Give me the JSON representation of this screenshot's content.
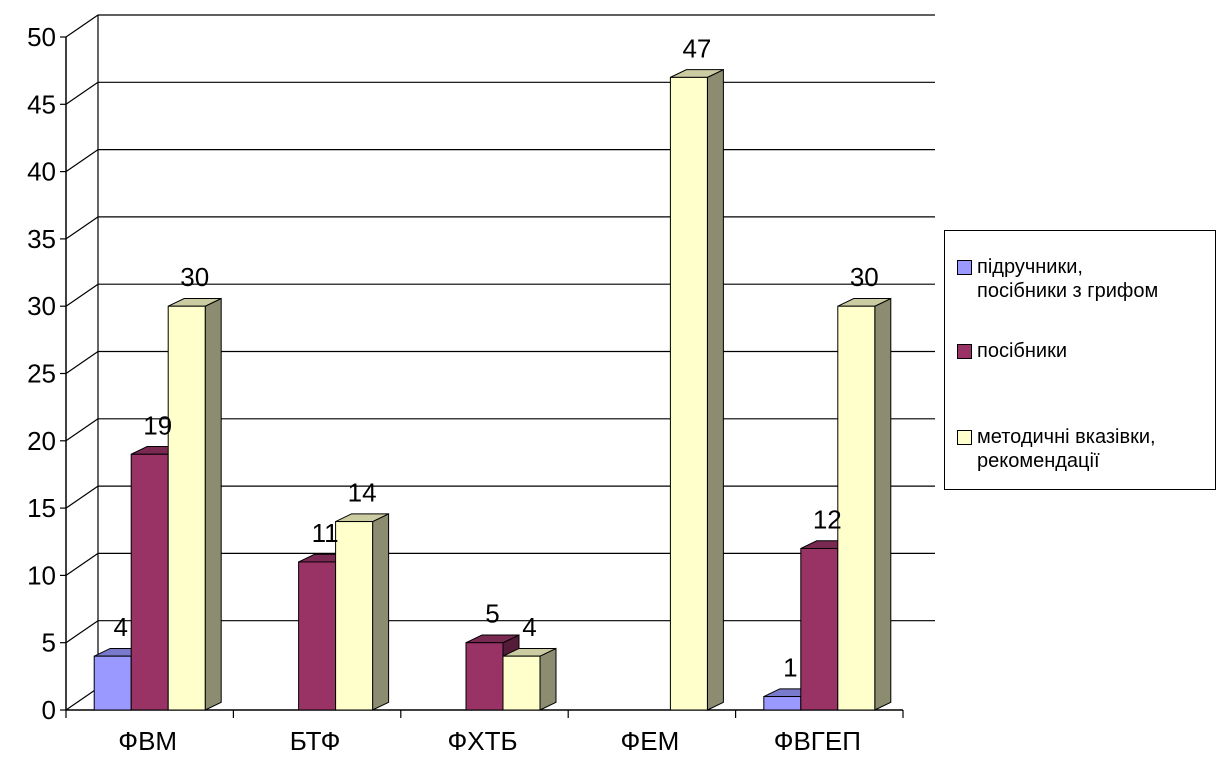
{
  "chart_data": {
    "type": "bar",
    "categories": [
      "ФВМ",
      "БТФ",
      "ФХТБ",
      "ФЕМ",
      "ФВГЕП"
    ],
    "series": [
      {
        "name": "підручники,\nпосібники з грифом",
        "color": "#9999ff",
        "values": [
          4,
          null,
          null,
          null,
          1
        ]
      },
      {
        "name": "посібники",
        "color": "#993366",
        "values": [
          19,
          11,
          5,
          null,
          12
        ]
      },
      {
        "name": "методичні вказівки,\nрекомендації",
        "color": "#ffffcc",
        "values": [
          30,
          14,
          4,
          47,
          30
        ]
      }
    ],
    "ylim": [
      0,
      50
    ],
    "yticks": [
      0,
      5,
      10,
      15,
      20,
      25,
      30,
      35,
      40,
      45,
      50
    ],
    "grid": true,
    "legend_position": "right",
    "style": "3d-column"
  }
}
